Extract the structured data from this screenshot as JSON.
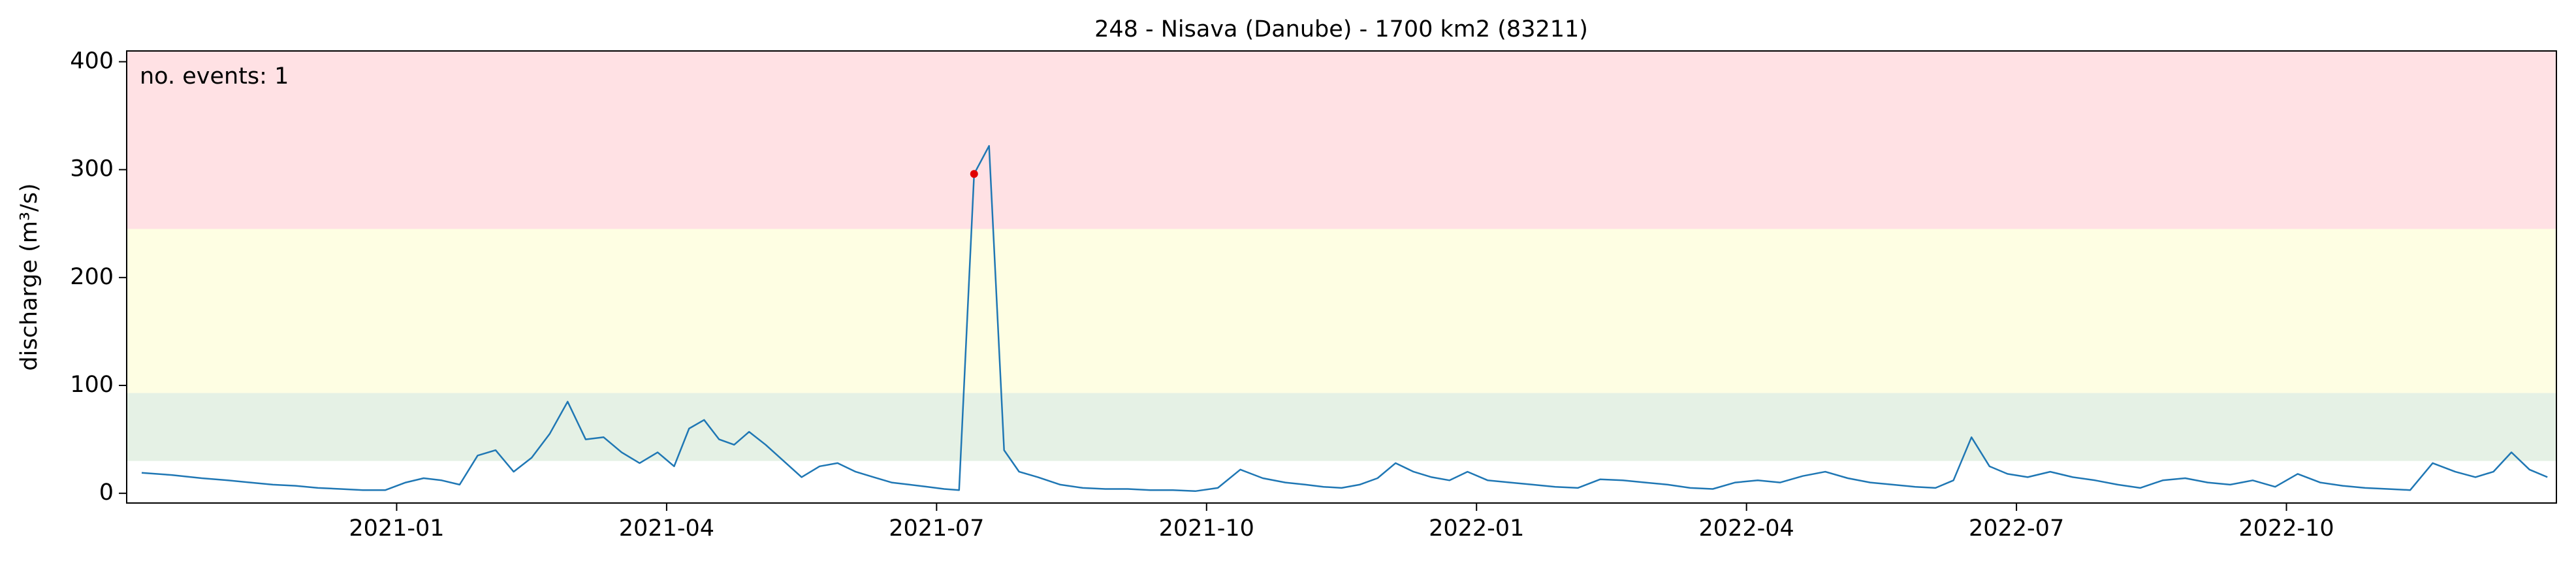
{
  "chart_data": {
    "type": "line",
    "title": "248 - Nisava (Danube) - 1700 km2 (83211)",
    "ylabel": "discharge (m³/s)",
    "annotation": "no. events: 1",
    "annotation_color": "#e00000",
    "color": "#1f77b4",
    "x": [
      "2020-10",
      "2020-10",
      "2020-10",
      "2020-11",
      "2020-11",
      "2020-11",
      "2020-11",
      "2020-12",
      "2020-12",
      "2020-12",
      "2020-12",
      "2021-01",
      "2021-01",
      "2021-01",
      "2021-01",
      "2021-01",
      "2021-02",
      "2021-02",
      "2021-02",
      "2021-02",
      "2021-02",
      "2021-03",
      "2021-03",
      "2021-03",
      "2021-03",
      "2021-03",
      "2021-04",
      "2021-04",
      "2021-04",
      "2021-04",
      "2021-04",
      "2021-04",
      "2021-05",
      "2021-05",
      "2021-05",
      "2021-05",
      "2021-05",
      "2021-06",
      "2021-06",
      "2021-06",
      "2021-06",
      "2021-06",
      "2021-07",
      "2021-07",
      "2021-07",
      "2021-07",
      "2021-07",
      "2021-07",
      "2021-08",
      "2021-08",
      "2021-08",
      "2021-08",
      "2021-09",
      "2021-09",
      "2021-09",
      "2021-09",
      "2021-10",
      "2021-10",
      "2021-10",
      "2021-10",
      "2021-11",
      "2021-11",
      "2021-11",
      "2021-11",
      "2021-11",
      "2021-12",
      "2021-12",
      "2021-12",
      "2021-12",
      "2021-12",
      "2022-01",
      "2022-01",
      "2022-01",
      "2022-01",
      "2022-02",
      "2022-02",
      "2022-02",
      "2022-02",
      "2022-03",
      "2022-03",
      "2022-03",
      "2022-03",
      "2022-04",
      "2022-04",
      "2022-04",
      "2022-04",
      "2022-05",
      "2022-05",
      "2022-05",
      "2022-05",
      "2022-06",
      "2022-06",
      "2022-06",
      "2022-06",
      "2022-06",
      "2022-07",
      "2022-07",
      "2022-07",
      "2022-07",
      "2022-08",
      "2022-08",
      "2022-08",
      "2022-08",
      "2022-09",
      "2022-09",
      "2022-09",
      "2022-09",
      "2022-10",
      "2022-10",
      "2022-10",
      "2022-10",
      "2022-11",
      "2022-11",
      "2022-11",
      "2022-11",
      "2022-12",
      "2022-12",
      "2022-12",
      "2022-12",
      "2022-12"
    ],
    "values": [
      19,
      17,
      14,
      12,
      10,
      8,
      7,
      5,
      4,
      3,
      3,
      10,
      14,
      12,
      8,
      35,
      40,
      20,
      33,
      55,
      85,
      50,
      52,
      38,
      28,
      38,
      25,
      60,
      68,
      50,
      45,
      57,
      45,
      30,
      15,
      25,
      28,
      20,
      15,
      10,
      8,
      6,
      4,
      3,
      296,
      322,
      40,
      20,
      15,
      8,
      5,
      4,
      4,
      3,
      3,
      2,
      5,
      22,
      14,
      10,
      8,
      6,
      5,
      8,
      14,
      28,
      20,
      15,
      12,
      20,
      12,
      10,
      8,
      6,
      5,
      13,
      12,
      10,
      8,
      5,
      4,
      10,
      12,
      10,
      16,
      20,
      14,
      10,
      8,
      6,
      5,
      12,
      52,
      25,
      18,
      15,
      20,
      15,
      12,
      8,
      5,
      12,
      14,
      10,
      8,
      12,
      6,
      18,
      10,
      7,
      5,
      4,
      3,
      28,
      20,
      15,
      20,
      38,
      22,
      15
    ],
    "events": [
      {
        "x": "2021-07",
        "value": 296,
        "color": "#e00000"
      }
    ],
    "bands": [
      {
        "from": 30,
        "to": 93,
        "color": "#e5f1e5"
      },
      {
        "from": 93,
        "to": 245,
        "color": "#fefee3"
      },
      {
        "from": 245,
        "to": 410,
        "color": "#ffe1e4"
      }
    ],
    "xlim": [
      "2020-10",
      "2023-01"
    ],
    "xticks": [
      "2021-01",
      "2021-04",
      "2021-07",
      "2021-10",
      "2022-01",
      "2022-04",
      "2022-07",
      "2022-10"
    ],
    "ylim": [
      -9,
      410
    ],
    "yticks": [
      0,
      100,
      200,
      300,
      400
    ],
    "grid": false
  }
}
